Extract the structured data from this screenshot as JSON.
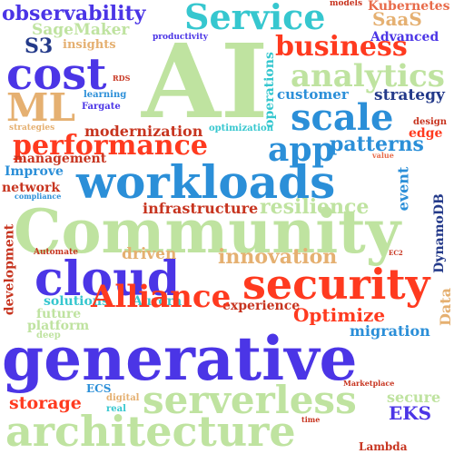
{
  "colors": {
    "background": "#ffffff",
    "blue": "#2b8fd8",
    "violet": "#4b35e6",
    "red": "#ff3a1f",
    "green": "#bfe3a0",
    "teal": "#36c7cf",
    "tan": "#e5b071",
    "darkred": "#c7341f"
  },
  "words": [
    "observability",
    "Service",
    "models",
    "Kubernetes",
    "SaaS",
    "SageMaker",
    "productivity",
    "Advanced",
    "S3",
    "insights",
    "business",
    "cost",
    "AI",
    "analytics",
    "RDS",
    "ML",
    "learning",
    "Fargate",
    "operations",
    "customer",
    "strategy",
    "scale",
    "strategies",
    "modernization",
    "optimization",
    "design",
    "edge",
    "performance",
    "app",
    "patterns",
    "management",
    "value",
    "Improve",
    "workloads",
    "network",
    "compliance",
    "event",
    "infrastructure",
    "resilience",
    "DynamoDB",
    "Community",
    "development",
    "Automate",
    "driven",
    "EC2",
    "cloud",
    "innovation",
    "security",
    "solutions",
    "Aurora",
    "Data",
    "future",
    "experience",
    "platform",
    "Alliance",
    "Optimize",
    "deep",
    "migration",
    "generative",
    "ECS",
    "Marketplace",
    "storage",
    "digital",
    "real",
    "serverless",
    "secure",
    "EKS",
    "architecture",
    "time",
    "Lambda"
  ]
}
